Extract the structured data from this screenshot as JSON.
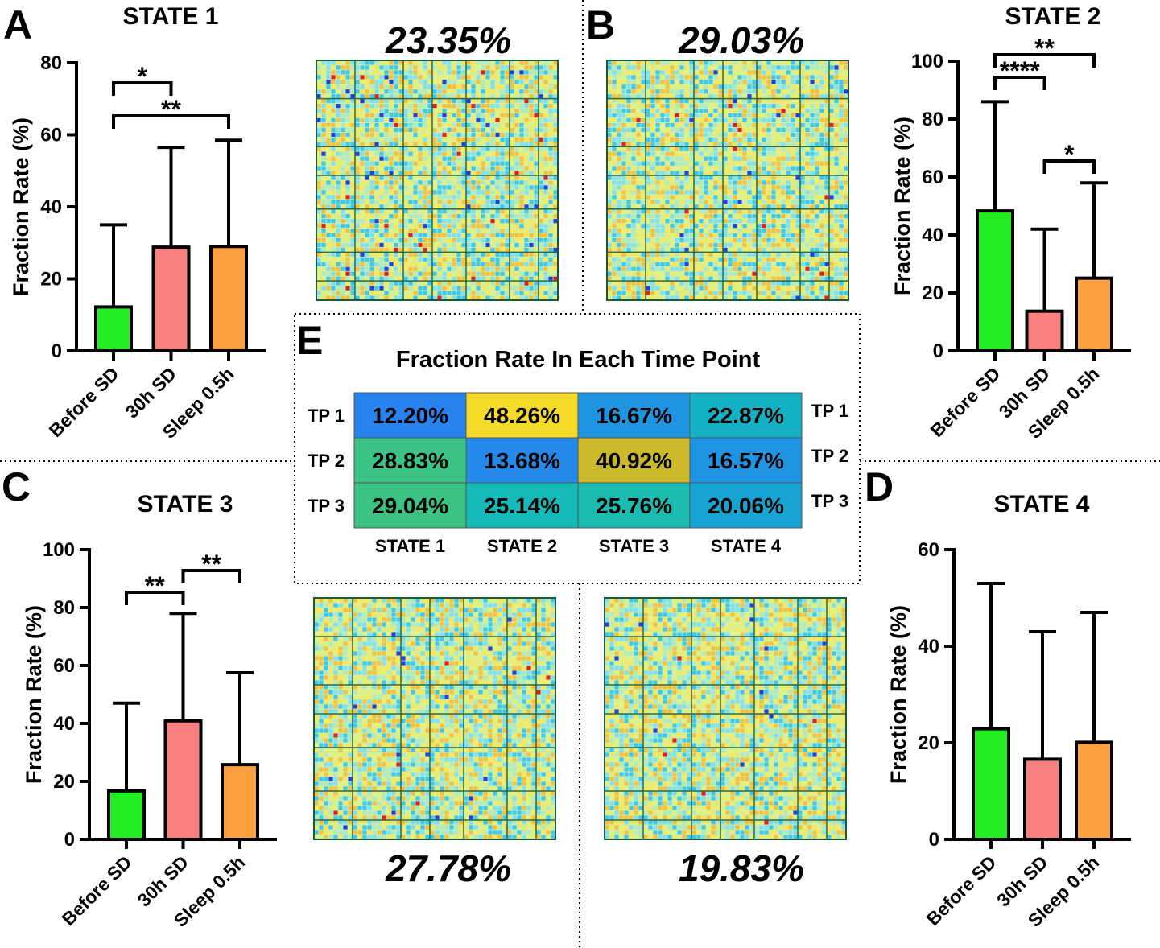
{
  "panel_labels": {
    "a": "A",
    "b": "B",
    "c": "C",
    "d": "D",
    "e": "E"
  },
  "matrix_percentages": {
    "state1": "23.35%",
    "state2": "29.03%",
    "state3": "27.78%",
    "state4": "19.83%"
  },
  "chart_data": [
    {
      "type": "bar",
      "panel": "A",
      "title": "STATE 1",
      "categories": [
        "Before SD",
        "30h SD",
        "Sleep 0.5h"
      ],
      "values": [
        12.2,
        28.8,
        29.0
      ],
      "errors": [
        35,
        56.5,
        58.5
      ],
      "colors": [
        "#22ee22",
        "#fa8080",
        "#fba040"
      ],
      "ylabel": "Fraction Rate (%)",
      "ylim": [
        0,
        80
      ],
      "yticks": [
        0,
        20,
        40,
        60,
        80
      ],
      "significance": [
        {
          "from": 0,
          "to": 1,
          "label": "*",
          "level": 1
        },
        {
          "from": 0,
          "to": 2,
          "label": "**",
          "level": 2
        }
      ]
    },
    {
      "type": "bar",
      "panel": "B",
      "title": "STATE 2",
      "categories": [
        "Before SD",
        "30h SD",
        "Sleep 0.5h"
      ],
      "values": [
        48.3,
        13.7,
        25.1
      ],
      "errors": [
        86,
        42,
        58
      ],
      "colors": [
        "#22ee22",
        "#fa8080",
        "#fba040"
      ],
      "ylabel": "Fraction Rate (%)",
      "ylim": [
        0,
        100
      ],
      "yticks": [
        0,
        20,
        40,
        60,
        80,
        100
      ],
      "significance": [
        {
          "from": 0,
          "to": 1,
          "label": "****",
          "level": 2
        },
        {
          "from": 0,
          "to": 2,
          "label": "**",
          "level": 3
        },
        {
          "from": 1,
          "to": 2,
          "label": "*",
          "level": 1
        }
      ]
    },
    {
      "type": "bar",
      "panel": "C",
      "title": "STATE 3",
      "categories": [
        "Before SD",
        "30h SD",
        "Sleep 0.5h"
      ],
      "values": [
        16.7,
        40.9,
        25.8
      ],
      "errors": [
        47,
        78,
        57.5
      ],
      "colors": [
        "#22ee22",
        "#fa8080",
        "#fba040"
      ],
      "ylabel": "Fraction Rate (%)",
      "ylim": [
        0,
        100
      ],
      "yticks": [
        0,
        20,
        40,
        60,
        80,
        100
      ],
      "significance": [
        {
          "from": 0,
          "to": 1,
          "label": "**",
          "level": 1
        },
        {
          "from": 1,
          "to": 2,
          "label": "**",
          "level": 2
        }
      ]
    },
    {
      "type": "bar",
      "panel": "D",
      "title": "STATE 4",
      "categories": [
        "Before SD",
        "30h SD",
        "Sleep 0.5h"
      ],
      "values": [
        22.9,
        16.6,
        20.1
      ],
      "errors": [
        53,
        43,
        47
      ],
      "colors": [
        "#22ee22",
        "#fa8080",
        "#fba040"
      ],
      "ylabel": "Fraction Rate (%)",
      "ylim": [
        0,
        60
      ],
      "yticks": [
        0,
        20,
        40,
        60
      ],
      "significance": []
    },
    {
      "type": "heatmap",
      "panel": "E",
      "title": "Fraction Rate In Each Time Point",
      "rows": [
        "TP 1",
        "TP 2",
        "TP 3"
      ],
      "columns": [
        "STATE 1",
        "STATE 2",
        "STATE 3",
        "STATE 4"
      ],
      "values": [
        [
          12.2,
          48.26,
          16.67,
          22.87
        ],
        [
          28.83,
          13.68,
          40.92,
          16.57
        ],
        [
          29.04,
          25.14,
          25.76,
          20.06
        ]
      ],
      "labels": [
        [
          "12.20%",
          "48.26%",
          "16.67%",
          "22.87%"
        ],
        [
          "28.83%",
          "13.68%",
          "40.92%",
          "16.57%"
        ],
        [
          "29.04%",
          "25.14%",
          "25.76%",
          "20.06%"
        ]
      ]
    }
  ]
}
